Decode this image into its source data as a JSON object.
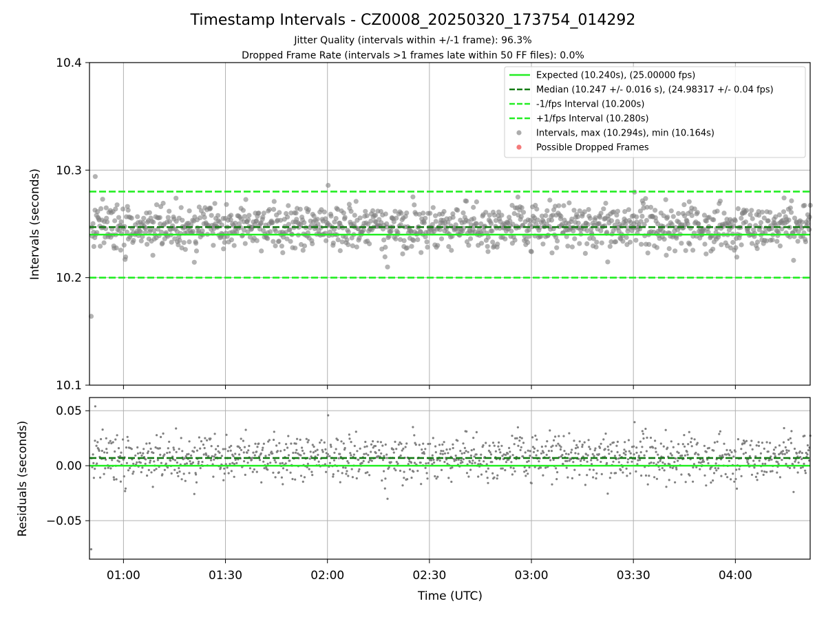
{
  "title": "Timestamp Intervals - CZ0008_20250320_173754_014292",
  "subtitle_1": "Jitter Quality (intervals within +/-1 frame): 96.3%",
  "subtitle_2": "Dropped Frame Rate (intervals >1 frames late within 50 FF files): 0.0%",
  "colors": {
    "expected": "#22ee22",
    "median": "#137a13",
    "interval_bounds": "#22ee22",
    "points": "#808080",
    "dropped": "#ee3333",
    "grid": "#b0b0b0"
  },
  "chart_data": [
    {
      "type": "scatter",
      "name": "intervals-panel",
      "ylabel": "Intervals (seconds)",
      "xlabel": "",
      "ylim": [
        10.1,
        10.4
      ],
      "xlim": [
        "00:50",
        "04:22"
      ],
      "y_ticks": [
        "10.1",
        "10.2",
        "10.3",
        "10.4"
      ],
      "x_ticks": [
        "01:00",
        "01:30",
        "02:00",
        "02:30",
        "03:00",
        "03:30",
        "04:00"
      ],
      "grid": true,
      "legend_position": "top-right",
      "reference_lines": [
        {
          "label": "Expected (10.240s), (25.00000 fps)",
          "y": 10.24,
          "style": "solid",
          "color": "#22ee22"
        },
        {
          "label": "Median (10.247 +/- 0.016 s), (24.98317 +/- 0.04 fps)",
          "y": 10.247,
          "style": "dashed",
          "color": "#137a13"
        },
        {
          "label": "-1/fps Interval (10.200s)",
          "y": 10.2,
          "style": "dashed",
          "color": "#22ee22"
        },
        {
          "label": "+1/fps Interval (10.280s)",
          "y": 10.28,
          "style": "dashed",
          "color": "#22ee22"
        }
      ],
      "series": [
        {
          "label": "Intervals, max (10.294s), min (10.164s)",
          "count": 1250,
          "x_range": [
            "00:50",
            "04:22"
          ],
          "y_max": 10.294,
          "y_min": 10.164,
          "y_median": 10.247,
          "color": "#808080"
        },
        {
          "label": "Possible Dropped Frames",
          "count": 0,
          "color": "#ee3333"
        }
      ]
    },
    {
      "type": "scatter",
      "name": "residuals-panel",
      "ylabel": "Residuals (seconds)",
      "xlabel": "Time (UTC)",
      "ylim": [
        -0.085,
        0.062
      ],
      "xlim": [
        "00:50",
        "04:22"
      ],
      "y_ticks": [
        "−0.05",
        "0.00",
        "0.05"
      ],
      "x_ticks": [
        "01:00",
        "01:30",
        "02:00",
        "02:30",
        "03:00",
        "03:30",
        "04:00"
      ],
      "grid": true,
      "reference_lines": [
        {
          "y": 0.0,
          "style": "solid",
          "color": "#22ee22"
        },
        {
          "y": 0.007,
          "style": "dashed",
          "color": "#137a13"
        }
      ],
      "series": [
        {
          "name": "residuals",
          "count": 1250,
          "y_max": 0.054,
          "y_min": -0.076,
          "color": "#808080"
        }
      ]
    }
  ]
}
